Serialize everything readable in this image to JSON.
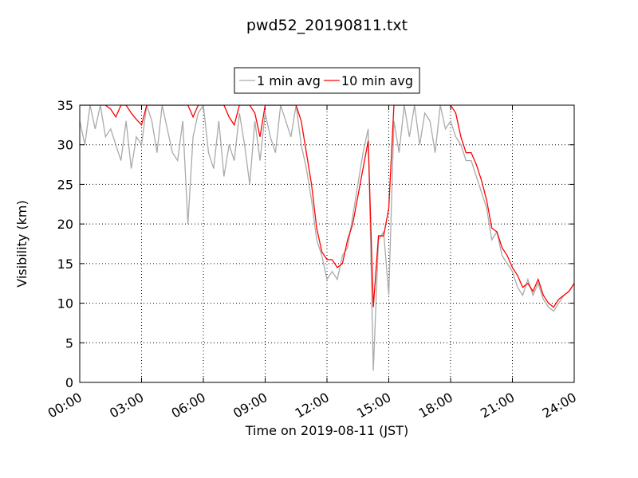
{
  "chart_data": {
    "type": "line",
    "title": "pwd52_20190811.txt",
    "xlabel": "Time on 2019-08-11 (JST)",
    "ylabel": "Visibility (km)",
    "x": [
      0,
      0.25,
      0.5,
      0.75,
      1,
      1.25,
      1.5,
      1.75,
      2,
      2.25,
      2.5,
      2.75,
      3,
      3.25,
      3.5,
      3.75,
      4,
      4.25,
      4.5,
      4.75,
      5,
      5.25,
      5.5,
      5.75,
      6,
      6.25,
      6.5,
      6.75,
      7,
      7.25,
      7.5,
      7.75,
      8,
      8.25,
      8.5,
      8.75,
      9,
      9.25,
      9.5,
      9.75,
      10,
      10.25,
      10.5,
      10.75,
      11,
      11.25,
      11.5,
      11.75,
      12,
      12.25,
      12.5,
      12.75,
      13,
      13.25,
      13.5,
      13.75,
      14,
      14.25,
      14.5,
      14.75,
      15,
      15.25,
      15.5,
      15.75,
      16,
      16.25,
      16.5,
      16.75,
      17,
      17.25,
      17.5,
      17.75,
      18,
      18.25,
      18.5,
      18.75,
      19,
      19.25,
      19.5,
      19.75,
      20,
      20.25,
      20.5,
      20.75,
      21,
      21.25,
      21.5,
      21.75,
      22,
      22.25,
      22.5,
      22.75,
      23,
      23.25,
      23.5,
      23.75,
      24
    ],
    "series": [
      {
        "name": "1 min avg",
        "color": "#aaaaaa",
        "values": [
          33,
          30,
          35,
          32,
          35,
          31,
          32,
          30,
          28,
          33,
          27,
          31,
          30,
          35,
          33,
          29,
          35,
          32,
          29,
          28,
          33,
          20,
          31,
          34,
          35,
          29,
          27,
          33,
          26,
          30,
          28,
          34,
          30,
          25,
          33,
          28,
          34,
          31,
          29,
          35,
          33,
          31,
          35,
          30,
          27,
          23,
          18,
          16,
          13,
          14,
          13,
          16,
          17,
          21,
          25,
          29,
          32,
          1.5,
          18,
          19,
          11,
          33,
          29,
          35,
          31,
          35,
          30,
          34,
          33,
          29,
          35,
          32,
          33,
          31,
          30,
          28,
          28,
          26,
          24,
          22,
          18,
          19,
          16,
          15,
          14,
          12,
          11,
          13,
          11,
          12.5,
          10.5,
          9.5,
          9,
          10,
          11,
          11.5,
          12.5
        ]
      },
      {
        "name": "10 min avg",
        "color": "#ff0000",
        "values": [
          35,
          35,
          35,
          35,
          35,
          35,
          34.5,
          33.5,
          35,
          35,
          34,
          33.2,
          32.5,
          35,
          35,
          35,
          35,
          35,
          35,
          35,
          35,
          35,
          33.5,
          35,
          35,
          35,
          35,
          35,
          35,
          33.5,
          32.5,
          35,
          35,
          35,
          34,
          31,
          35,
          35,
          35,
          35,
          35,
          35,
          35,
          33,
          29,
          25,
          19.5,
          16.5,
          15.5,
          15.5,
          14.5,
          15,
          18,
          20,
          23.5,
          27,
          30.5,
          9.5,
          18.5,
          18.5,
          22,
          35,
          35,
          35,
          35,
          35,
          35,
          35,
          35,
          35,
          35,
          35,
          35,
          34,
          31,
          29,
          29,
          27.5,
          25.5,
          23,
          19.5,
          19,
          17,
          16,
          14.5,
          13.5,
          12,
          12.5,
          11.5,
          13,
          11,
          10,
          9.5,
          10.5,
          11,
          11.5,
          12.5
        ]
      }
    ],
    "xlim": [
      0,
      24
    ],
    "xticks": [
      {
        "value": 0,
        "label": "00:00"
      },
      {
        "value": 3,
        "label": "03:00"
      },
      {
        "value": 6,
        "label": "06:00"
      },
      {
        "value": 9,
        "label": "09:00"
      },
      {
        "value": 12,
        "label": "12:00"
      },
      {
        "value": 15,
        "label": "15:00"
      },
      {
        "value": 18,
        "label": "18:00"
      },
      {
        "value": 21,
        "label": "21:00"
      },
      {
        "value": 24,
        "label": "24:00"
      }
    ],
    "ylim": [
      0,
      35
    ],
    "yticks": [
      0,
      5,
      10,
      15,
      20,
      25,
      30,
      35
    ],
    "grid": true,
    "legend": "top"
  }
}
